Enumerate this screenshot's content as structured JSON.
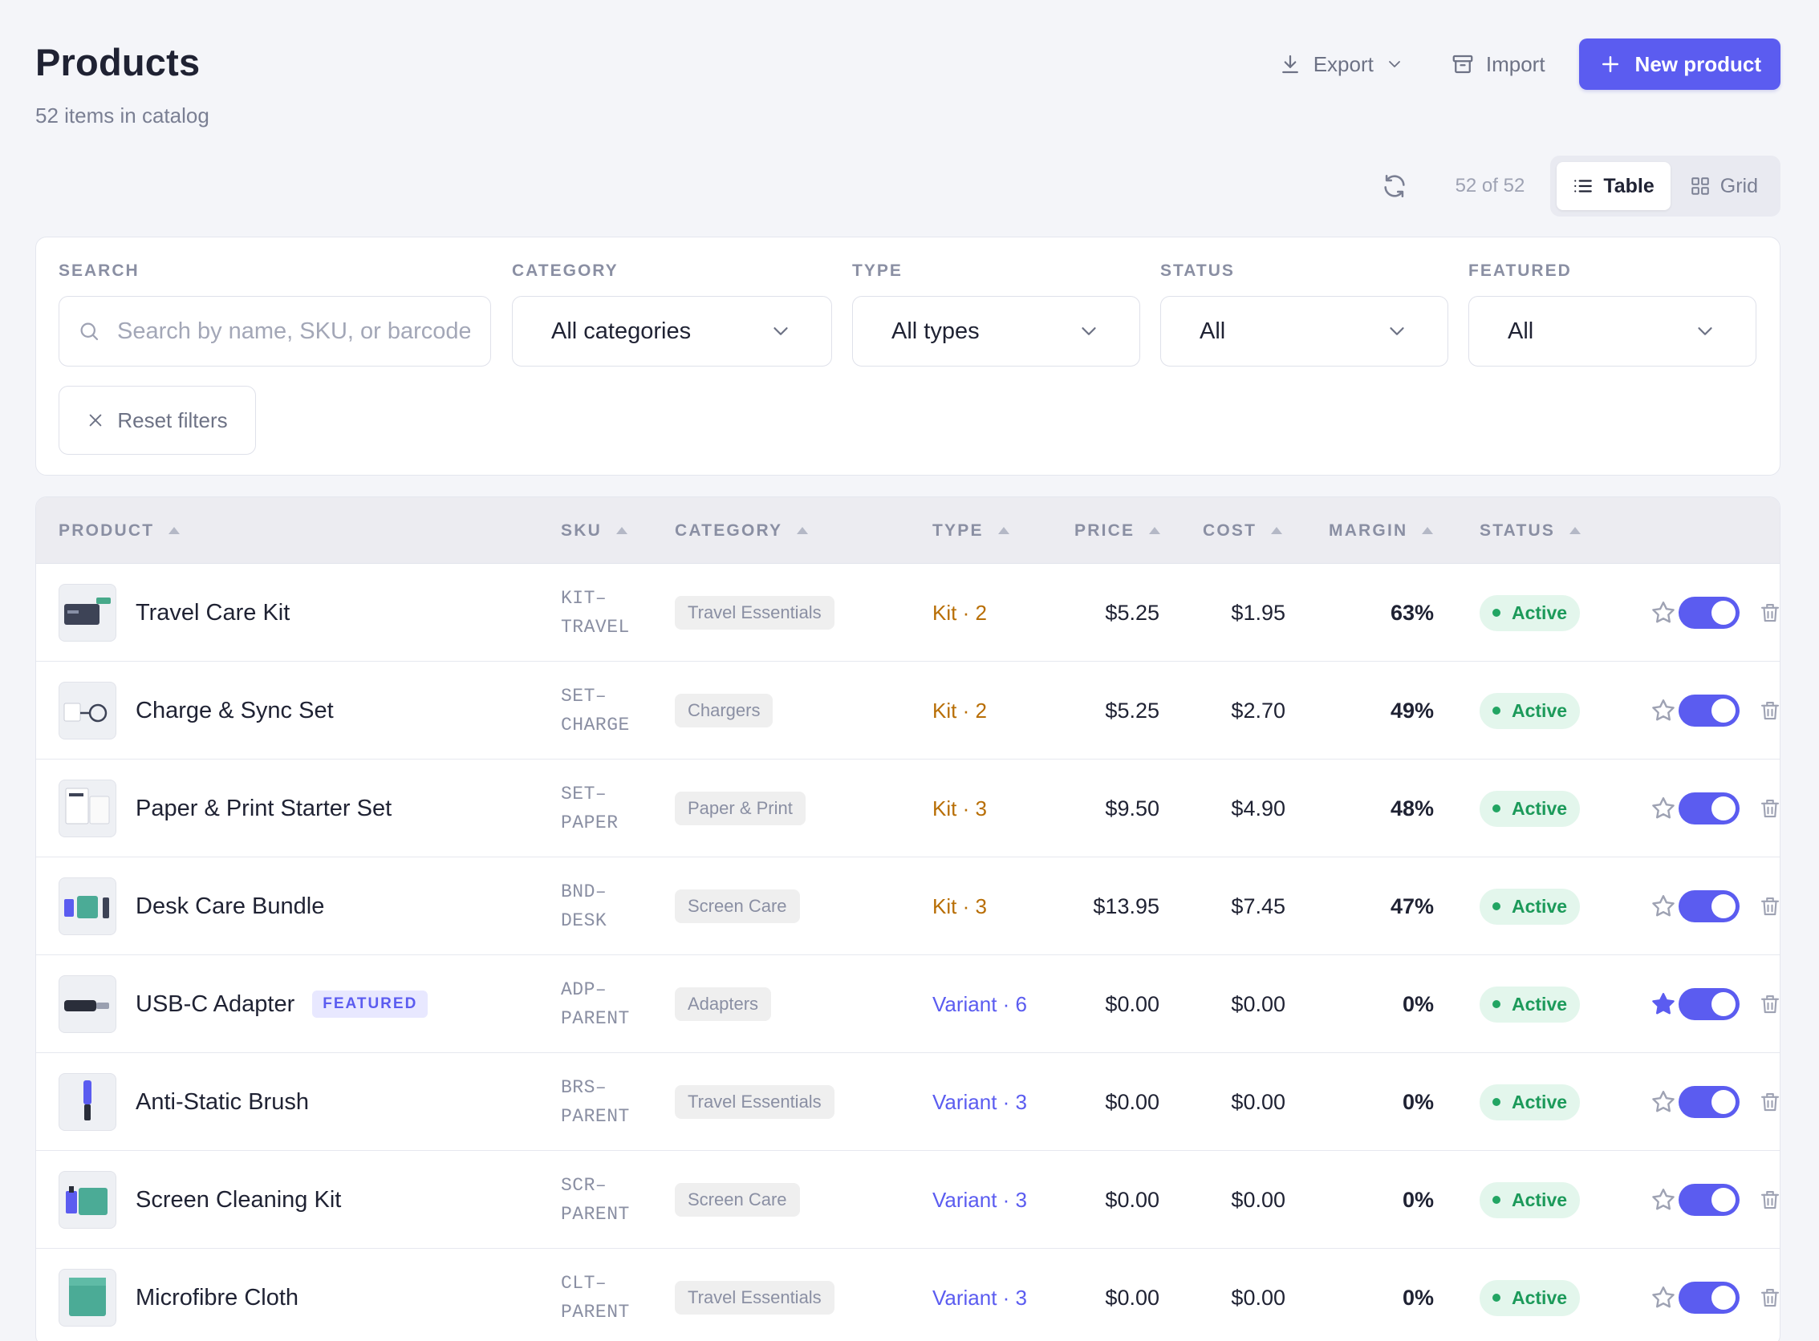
{
  "header": {
    "title": "Products",
    "subtitle": "52 items in catalog",
    "export_label": "Export",
    "import_label": "Import",
    "new_product_label": "New product"
  },
  "toolbar": {
    "count_label": "52 of 52",
    "view_table_label": "Table",
    "view_grid_label": "Grid",
    "active_view": "Table"
  },
  "filters": {
    "search_label": "SEARCH",
    "search_placeholder": "Search by name, SKU, or barcode",
    "search_value": "",
    "category_label": "CATEGORY",
    "category_value": "All categories",
    "type_label": "TYPE",
    "type_value": "All types",
    "status_label": "STATUS",
    "status_value": "All",
    "featured_label": "FEATURED",
    "featured_value": "All",
    "reset_label": "Reset filters"
  },
  "table": {
    "columns": [
      "PRODUCT",
      "SKU",
      "CATEGORY",
      "TYPE",
      "PRICE",
      "COST",
      "MARGIN",
      "STATUS"
    ],
    "featured_badge_label": "FEATURED",
    "rows": [
      {
        "name": "Travel Care Kit",
        "sku1": "KIT–",
        "sku2": "TRAVEL",
        "category": "Travel Essentials",
        "type": "Kit · 2",
        "price": "$5.25",
        "cost": "$1.95",
        "margin": "63%",
        "status": "Active",
        "starred": false,
        "enabled": true
      },
      {
        "name": "Charge & Sync Set",
        "sku1": "SET–",
        "sku2": "CHARGE",
        "category": "Chargers",
        "type": "Kit · 2",
        "price": "$5.25",
        "cost": "$2.70",
        "margin": "49%",
        "status": "Active",
        "starred": false,
        "enabled": true
      },
      {
        "name": "Paper & Print Starter Set",
        "sku1": "SET–",
        "sku2": "PAPER",
        "category": "Paper & Print",
        "type": "Kit · 3",
        "price": "$9.50",
        "cost": "$4.90",
        "margin": "48%",
        "status": "Active",
        "starred": false,
        "enabled": true
      },
      {
        "name": "Desk Care Bundle",
        "sku1": "BND–",
        "sku2": "DESK",
        "category": "Screen Care",
        "type": "Kit · 3",
        "price": "$13.95",
        "cost": "$7.45",
        "margin": "47%",
        "status": "Active",
        "starred": false,
        "enabled": true
      },
      {
        "name": "USB-C Adapter",
        "sku1": "ADP–",
        "sku2": "PARENT",
        "category": "Adapters",
        "type": "Variant · 6",
        "price": "$0.00",
        "cost": "$0.00",
        "margin": "0%",
        "status": "Active",
        "starred": true,
        "enabled": true
      },
      {
        "name": "Anti-Static Brush",
        "sku1": "BRS–",
        "sku2": "PARENT",
        "category": "Travel Essentials",
        "type": "Variant · 3",
        "price": "$0.00",
        "cost": "$0.00",
        "margin": "0%",
        "status": "Active",
        "starred": false,
        "enabled": true
      },
      {
        "name": "Screen Cleaning Kit",
        "sku1": "SCR–",
        "sku2": "PARENT",
        "category": "Screen Care",
        "type": "Variant · 3",
        "price": "$0.00",
        "cost": "$0.00",
        "margin": "0%",
        "status": "Active",
        "starred": false,
        "enabled": true
      },
      {
        "name": "Microfibre Cloth",
        "sku1": "CLT–",
        "sku2": "PARENT",
        "category": "Travel Essentials",
        "type": "Variant · 3",
        "price": "$0.00",
        "cost": "$0.00",
        "margin": "0%",
        "status": "Active",
        "starred": false,
        "enabled": true
      }
    ]
  },
  "colors": {
    "accent": "#5b5cf0",
    "kit": "#b86e05",
    "active_green": "#1c9a5a",
    "background": "#f4f5f9"
  }
}
